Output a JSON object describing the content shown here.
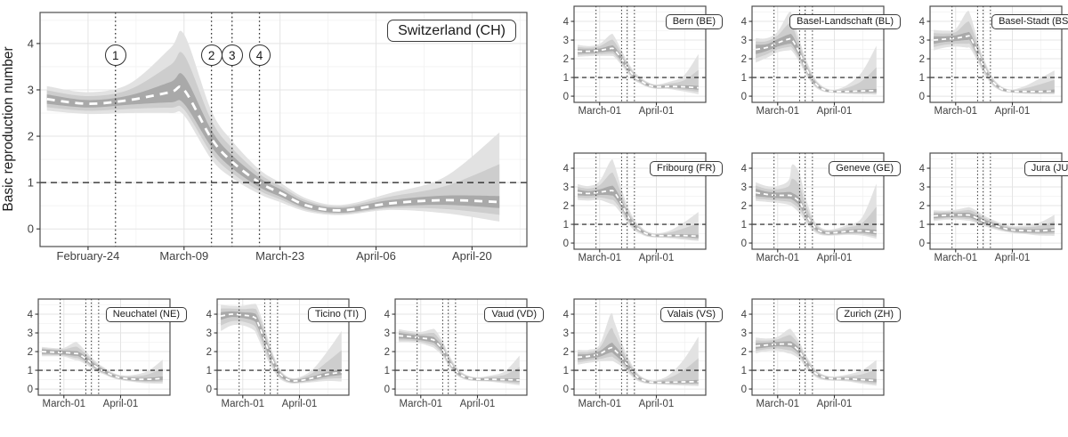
{
  "figure": {
    "ylabel": "Basic reproduction number",
    "threshold_value": 1,
    "marker_y_value": 3.75,
    "event_markers": [
      {
        "label": "1",
        "day": 12
      },
      {
        "label": "2",
        "day": 26
      },
      {
        "label": "3",
        "day": 29
      },
      {
        "label": "4",
        "day": 33
      }
    ],
    "colors": {
      "background": "#ffffff",
      "panel_border": "#4d4d4d",
      "grid_major": "#e4e4e4",
      "grid_minor": "#f2f2f2",
      "band_outer": "#e2e2e2",
      "band_middle": "#cdcdcd",
      "band_inner": "#a9a9a9",
      "median_line": "#ffffff",
      "threshold_line": "#1a1a1a",
      "event_line": "#333333",
      "tick_text": "#404040",
      "tick_mark": "#333333"
    }
  },
  "chart_data": {
    "type": "area",
    "x_origin_date": "February-16",
    "xlim_days": [
      0,
      72
    ],
    "x_days": [
      2,
      8,
      14,
      20,
      22,
      26,
      29,
      33,
      36,
      40,
      45,
      52,
      60,
      68
    ],
    "y_ticks": [
      0,
      1,
      2,
      3,
      4
    ],
    "main_x_ticks": [
      {
        "label": "February-24",
        "day": 8
      },
      {
        "label": "March-09",
        "day": 22
      },
      {
        "label": "March-23",
        "day": 36
      },
      {
        "label": "April-06",
        "day": 50
      },
      {
        "label": "April-20",
        "day": 64
      }
    ],
    "small_x_ticks": [
      {
        "label": "March-01",
        "day": 14
      },
      {
        "label": "April-01",
        "day": 45
      }
    ],
    "panels": [
      {
        "id": "CH",
        "label": "Switzerland (CH)",
        "median": [
          2.8,
          2.7,
          2.78,
          2.95,
          3.0,
          1.95,
          1.45,
          1.0,
          0.78,
          0.5,
          0.4,
          0.55,
          0.62,
          0.58
        ],
        "band_inner_halfwidth": [
          0.1,
          0.08,
          0.1,
          0.22,
          0.3,
          0.18,
          0.14,
          0.1,
          0.08,
          0.06,
          0.05,
          0.07,
          0.1,
          0.13
        ],
        "band_outer_up": [
          0.28,
          0.25,
          0.35,
          0.95,
          1.2,
          0.6,
          0.45,
          0.28,
          0.22,
          0.15,
          0.12,
          0.22,
          0.5,
          1.5
        ],
        "band_outer_dn": [
          0.25,
          0.22,
          0.28,
          0.45,
          0.55,
          0.45,
          0.35,
          0.25,
          0.2,
          0.13,
          0.1,
          0.14,
          0.28,
          0.42
        ]
      },
      {
        "id": "BE",
        "label": "Bern (BE)",
        "median": [
          2.4,
          2.4,
          2.45,
          2.55,
          2.5,
          2.0,
          1.55,
          1.05,
          0.85,
          0.62,
          0.5,
          0.52,
          0.5,
          0.45
        ],
        "band_inner_halfwidth": [
          0.12,
          0.1,
          0.1,
          0.15,
          0.15,
          0.13,
          0.11,
          0.08,
          0.07,
          0.06,
          0.05,
          0.06,
          0.08,
          0.1
        ],
        "band_outer_up": [
          0.35,
          0.28,
          0.35,
          0.75,
          0.7,
          0.45,
          0.35,
          0.25,
          0.2,
          0.15,
          0.13,
          0.25,
          0.6,
          1.8
        ],
        "band_outer_dn": [
          0.3,
          0.26,
          0.3,
          0.4,
          0.4,
          0.35,
          0.28,
          0.2,
          0.17,
          0.13,
          0.11,
          0.14,
          0.25,
          0.35
        ]
      },
      {
        "id": "BL",
        "label": "Basel-Landschaft (BL)",
        "median": [
          2.5,
          2.6,
          2.85,
          3.05,
          3.0,
          2.3,
          1.6,
          0.9,
          0.55,
          0.32,
          0.25,
          0.25,
          0.28,
          0.3
        ],
        "band_inner_halfwidth": [
          0.25,
          0.18,
          0.2,
          0.25,
          0.25,
          0.2,
          0.15,
          0.1,
          0.07,
          0.05,
          0.04,
          0.05,
          0.07,
          0.09
        ],
        "band_outer_up": [
          0.6,
          0.5,
          0.6,
          1.4,
          1.3,
          0.7,
          0.5,
          0.3,
          0.2,
          0.13,
          0.1,
          0.35,
          1.0,
          2.4
        ],
        "band_outer_dn": [
          0.7,
          0.55,
          0.5,
          0.6,
          0.6,
          0.5,
          0.38,
          0.25,
          0.17,
          0.1,
          0.08,
          0.12,
          0.18,
          0.22
        ]
      },
      {
        "id": "BS",
        "label": "Basel-Stadt (BS)",
        "median": [
          3.0,
          3.05,
          3.1,
          3.2,
          3.15,
          2.35,
          1.65,
          0.95,
          0.6,
          0.35,
          0.26,
          0.25,
          0.25,
          0.28
        ],
        "band_inner_halfwidth": [
          0.2,
          0.15,
          0.15,
          0.2,
          0.2,
          0.18,
          0.14,
          0.09,
          0.07,
          0.05,
          0.04,
          0.05,
          0.06,
          0.08
        ],
        "band_outer_up": [
          0.55,
          0.45,
          0.5,
          1.3,
          1.2,
          0.65,
          0.45,
          0.28,
          0.18,
          0.12,
          0.1,
          0.3,
          0.7,
          1.1
        ],
        "band_outer_dn": [
          0.55,
          0.45,
          0.45,
          0.6,
          0.6,
          0.5,
          0.38,
          0.25,
          0.17,
          0.11,
          0.08,
          0.12,
          0.15,
          0.18
        ]
      },
      {
        "id": "FR",
        "label": "Fribourg (FR)",
        "median": [
          2.7,
          2.65,
          2.72,
          2.8,
          2.72,
          2.1,
          1.5,
          0.95,
          0.7,
          0.48,
          0.4,
          0.4,
          0.4,
          0.36
        ],
        "band_inner_halfwidth": [
          0.15,
          0.12,
          0.15,
          0.25,
          0.25,
          0.2,
          0.15,
          0.1,
          0.08,
          0.06,
          0.05,
          0.06,
          0.07,
          0.09
        ],
        "band_outer_up": [
          0.45,
          0.4,
          0.6,
          1.6,
          1.5,
          0.8,
          0.55,
          0.3,
          0.22,
          0.14,
          0.12,
          0.25,
          0.7,
          1.3
        ],
        "band_outer_dn": [
          0.4,
          0.38,
          0.42,
          0.7,
          0.7,
          0.55,
          0.4,
          0.28,
          0.2,
          0.14,
          0.11,
          0.14,
          0.22,
          0.26
        ]
      },
      {
        "id": "GE",
        "label": "Geneve (GE)",
        "median": [
          2.7,
          2.6,
          2.55,
          2.55,
          2.5,
          2.2,
          1.6,
          1.0,
          0.7,
          0.55,
          0.55,
          0.62,
          0.65,
          0.58
        ],
        "band_inner_halfwidth": [
          0.2,
          0.15,
          0.15,
          0.18,
          0.18,
          0.2,
          0.15,
          0.1,
          0.08,
          0.07,
          0.07,
          0.08,
          0.1,
          0.12
        ],
        "band_outer_up": [
          0.55,
          0.45,
          0.5,
          0.8,
          1.7,
          1.5,
          0.9,
          0.4,
          0.25,
          0.18,
          0.2,
          0.35,
          0.7,
          2.6
        ],
        "band_outer_dn": [
          0.45,
          0.4,
          0.4,
          0.5,
          0.55,
          0.6,
          0.45,
          0.3,
          0.22,
          0.15,
          0.15,
          0.18,
          0.25,
          0.35
        ]
      },
      {
        "id": "JU",
        "label": "Jura (JU)",
        "median": [
          1.45,
          1.48,
          1.5,
          1.5,
          1.48,
          1.32,
          1.18,
          1.02,
          0.92,
          0.8,
          0.7,
          0.66,
          0.65,
          0.7
        ],
        "band_inner_halfwidth": [
          0.12,
          0.1,
          0.1,
          0.12,
          0.12,
          0.12,
          0.11,
          0.1,
          0.09,
          0.08,
          0.08,
          0.09,
          0.1,
          0.12
        ],
        "band_outer_up": [
          0.3,
          0.25,
          0.28,
          0.4,
          0.42,
          0.38,
          0.32,
          0.28,
          0.25,
          0.22,
          0.2,
          0.28,
          0.45,
          0.8
        ],
        "band_outer_dn": [
          0.28,
          0.24,
          0.25,
          0.3,
          0.3,
          0.28,
          0.25,
          0.22,
          0.2,
          0.18,
          0.16,
          0.18,
          0.25,
          0.32
        ]
      },
      {
        "id": "NE",
        "label": "Neuchatel (NE)",
        "median": [
          2.0,
          1.97,
          1.95,
          1.9,
          1.87,
          1.62,
          1.38,
          1.1,
          0.95,
          0.75,
          0.6,
          0.53,
          0.52,
          0.57
        ],
        "band_inner_halfwidth": [
          0.12,
          0.1,
          0.1,
          0.12,
          0.12,
          0.12,
          0.11,
          0.09,
          0.08,
          0.07,
          0.06,
          0.07,
          0.08,
          0.1
        ],
        "band_outer_up": [
          0.25,
          0.22,
          0.25,
          0.6,
          0.55,
          0.4,
          0.32,
          0.25,
          0.2,
          0.16,
          0.14,
          0.22,
          0.45,
          1.0
        ],
        "band_outer_dn": [
          0.25,
          0.22,
          0.22,
          0.35,
          0.35,
          0.3,
          0.25,
          0.2,
          0.17,
          0.14,
          0.12,
          0.15,
          0.22,
          0.28
        ]
      },
      {
        "id": "TI",
        "label": "Ticino (TI)",
        "median": [
          3.9,
          4.0,
          3.95,
          3.85,
          3.6,
          2.6,
          1.8,
          1.0,
          0.65,
          0.45,
          0.45,
          0.58,
          0.78,
          0.9
        ],
        "band_inner_halfwidth": [
          0.2,
          0.15,
          0.15,
          0.2,
          0.25,
          0.25,
          0.2,
          0.12,
          0.09,
          0.07,
          0.07,
          0.09,
          0.12,
          0.15
        ],
        "band_outer_up": [
          0.6,
          0.45,
          0.5,
          0.7,
          0.8,
          0.7,
          0.5,
          0.3,
          0.2,
          0.15,
          0.18,
          0.45,
          1.2,
          2.2
        ],
        "band_outer_dn": [
          0.8,
          0.6,
          0.55,
          0.7,
          0.8,
          0.7,
          0.5,
          0.32,
          0.22,
          0.15,
          0.15,
          0.22,
          0.35,
          0.5
        ]
      },
      {
        "id": "VD",
        "label": "Vaud (VD)",
        "median": [
          2.85,
          2.8,
          2.73,
          2.65,
          2.55,
          2.1,
          1.55,
          1.0,
          0.75,
          0.58,
          0.52,
          0.52,
          0.5,
          0.48
        ],
        "band_inner_halfwidth": [
          0.15,
          0.12,
          0.12,
          0.15,
          0.15,
          0.15,
          0.12,
          0.09,
          0.07,
          0.06,
          0.05,
          0.06,
          0.07,
          0.09
        ],
        "band_outer_up": [
          0.35,
          0.3,
          0.32,
          0.55,
          0.6,
          0.45,
          0.35,
          0.25,
          0.18,
          0.13,
          0.11,
          0.2,
          0.45,
          1.3
        ],
        "band_outer_dn": [
          0.35,
          0.3,
          0.3,
          0.4,
          0.42,
          0.35,
          0.28,
          0.2,
          0.16,
          0.12,
          0.1,
          0.13,
          0.2,
          0.28
        ]
      },
      {
        "id": "VS",
        "label": "Valais (VS)",
        "median": [
          1.7,
          1.75,
          1.88,
          2.2,
          2.1,
          1.7,
          1.3,
          0.8,
          0.55,
          0.4,
          0.35,
          0.36,
          0.38,
          0.4
        ],
        "band_inner_halfwidth": [
          0.15,
          0.12,
          0.15,
          0.25,
          0.25,
          0.2,
          0.15,
          0.1,
          0.07,
          0.05,
          0.05,
          0.06,
          0.07,
          0.09
        ],
        "band_outer_up": [
          0.4,
          0.35,
          0.5,
          1.8,
          1.5,
          0.8,
          0.5,
          0.28,
          0.18,
          0.12,
          0.12,
          0.4,
          1.2,
          2.4
        ],
        "band_outer_dn": [
          0.4,
          0.35,
          0.4,
          0.7,
          0.65,
          0.5,
          0.38,
          0.25,
          0.17,
          0.12,
          0.1,
          0.14,
          0.2,
          0.25
        ]
      },
      {
        "id": "ZH",
        "label": "Zurich (ZH)",
        "median": [
          2.3,
          2.35,
          2.4,
          2.4,
          2.35,
          2.0,
          1.5,
          1.0,
          0.75,
          0.6,
          0.55,
          0.55,
          0.5,
          0.45
        ],
        "band_inner_halfwidth": [
          0.15,
          0.12,
          0.12,
          0.15,
          0.15,
          0.15,
          0.12,
          0.09,
          0.07,
          0.06,
          0.05,
          0.06,
          0.07,
          0.09
        ],
        "band_outer_up": [
          0.45,
          0.35,
          0.4,
          0.8,
          0.75,
          0.5,
          0.38,
          0.26,
          0.18,
          0.13,
          0.12,
          0.22,
          0.5,
          1.1
        ],
        "band_outer_dn": [
          0.4,
          0.32,
          0.35,
          0.5,
          0.5,
          0.4,
          0.3,
          0.22,
          0.18,
          0.13,
          0.11,
          0.14,
          0.22,
          0.28
        ]
      }
    ]
  }
}
